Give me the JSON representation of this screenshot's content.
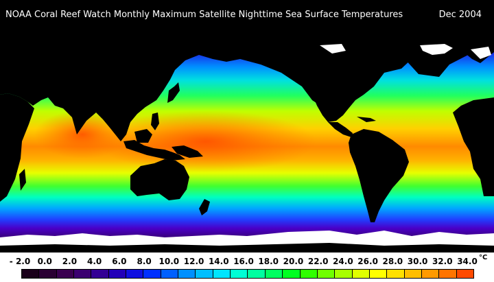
{
  "header": {
    "title": "NOAA Coral Reef Watch Monthly Maximum Satellite Nighttime Sea Surface Temperatures",
    "date": "Dec 2004"
  },
  "colors": {
    "land": "#000000",
    "sea_ice": "#ffffff",
    "scale": [
      "#1a001a",
      "#2a0033",
      "#3a0050",
      "#3b0070",
      "#330094",
      "#2200b8",
      "#1010e0",
      "#0030ff",
      "#0060ff",
      "#0090ff",
      "#00bfff",
      "#00e5ff",
      "#00ffd5",
      "#00ffa0",
      "#00ff60",
      "#00ff20",
      "#30ff00",
      "#70ff00",
      "#a8ff00",
      "#e0ff00",
      "#ffff00",
      "#ffe000",
      "#ffbe00",
      "#ff9a00",
      "#ff7400",
      "#ff4a00"
    ]
  },
  "legend": {
    "unit": "°C",
    "min": -2.0,
    "max": 34.0,
    "ticks": [
      "- 2.0",
      "0.0",
      "2.0",
      "4.0",
      "6.0",
      "8.0",
      "10.0",
      "12.0",
      "14.0",
      "16.0",
      "18.0",
      "20.0",
      "22.0",
      "24.0",
      "26.0",
      "28.0",
      "30.0",
      "32.0",
      "34.0"
    ]
  }
}
